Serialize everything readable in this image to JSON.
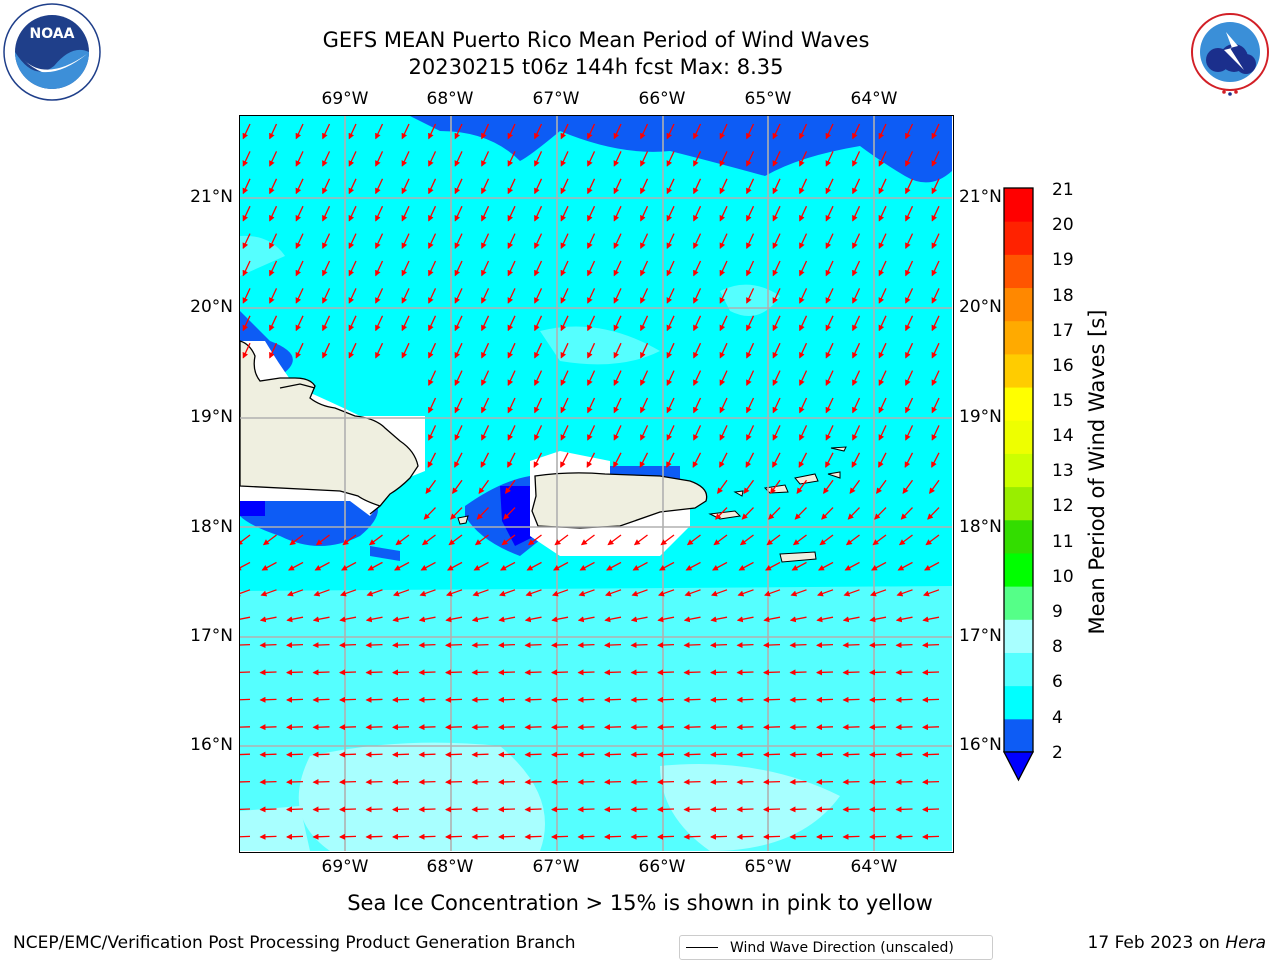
{
  "title": {
    "line1": "GEFS MEAN Puerto Rico Mean Period of Wind Waves",
    "line2": "20230215 t06z 144h fcst   Max: 8.35"
  },
  "logos": {
    "left": {
      "name": "NOAA",
      "ring_text": "NATIONAL OCEANIC AND ATMOSPHERIC ADMINISTRATION",
      "bottom_text": "U.S. DEPARTMENT OF COMMERCE",
      "icon": "noaa-logo"
    },
    "right": {
      "name": "NATIONAL WEATHER SERVICE",
      "icon": "nws-logo"
    }
  },
  "chart_data": {
    "type": "heatmap",
    "title": "GEFS MEAN Puerto Rico Mean Period of Wind Waves",
    "subtitle": "20230215 t06z 144h fcst   Max: 8.35",
    "variable_label": "Mean Period of Wind Waves [s]",
    "x_ticks": [
      "69°W",
      "68°W",
      "67°W",
      "66°W",
      "65°W",
      "64°W"
    ],
    "y_ticks": [
      "21°N",
      "20°N",
      "19°N",
      "18°N",
      "17°N",
      "16°N"
    ],
    "lon_range": [
      -70.0,
      -63.25
    ],
    "lat_range": [
      15.05,
      21.75
    ],
    "grid": true,
    "colorbar": {
      "ticks": [
        "21",
        "20",
        "19",
        "18",
        "17",
        "16",
        "15",
        "14",
        "13",
        "12",
        "11",
        "10",
        "9",
        "8",
        "6",
        "4",
        "2"
      ],
      "bounds": [
        2,
        4,
        6,
        8,
        9,
        10,
        11,
        12,
        13,
        14,
        15,
        16,
        17,
        18,
        19,
        20,
        21
      ],
      "colors": [
        "#0d5cf5",
        "#00ffff",
        "#55ffff",
        "#a8ffff",
        "#55ff88",
        "#00ff00",
        "#33dd00",
        "#99ee00",
        "#ccff00",
        "#eeff00",
        "#ffff00",
        "#ffcc00",
        "#ffaa00",
        "#ff8800",
        "#ff5500",
        "#ff2200",
        "#ff0000"
      ],
      "under_color": "#0000ff",
      "extend": "min"
    },
    "field": {
      "description_levels": [
        "2-4",
        "4-6",
        "6-8",
        "8-9"
      ],
      "max": 8.35
    },
    "wind_wave_direction": {
      "color": "#ff0000",
      "north_part_heading": "south-southwest",
      "south_part_heading": "west"
    },
    "legend": {
      "label": "Wind Wave Direction (unscaled)",
      "placement": "bottom-center"
    }
  },
  "footer": {
    "note": "Sea Ice Concentration > 15% is shown in pink to yellow",
    "left": "NCEP/EMC/Verification Post Processing Product Generation Branch",
    "right_prefix": "17 Feb 2023 on ",
    "right_host": "Hera"
  }
}
